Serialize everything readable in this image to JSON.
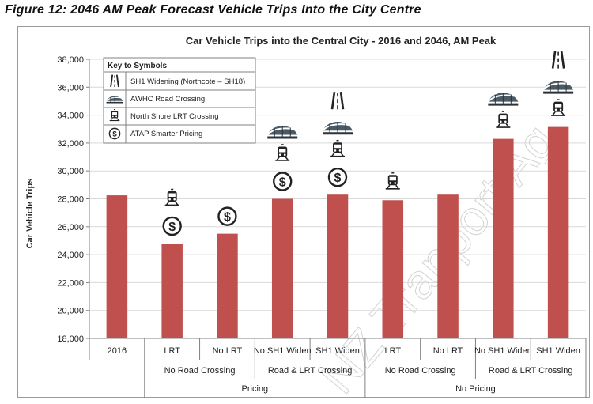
{
  "figure_caption": "Figure 12: 2046 AM Peak Forecast Vehicle Trips Into the City Centre",
  "watermark": "NZ Tranport Ag",
  "colors": {
    "bar": "#c0504d",
    "gridline": "#d9d9d9",
    "axis": "#808080",
    "icon": "#222222"
  },
  "key": {
    "title": "Key to Symbols",
    "items": [
      {
        "icon": "road-widening-icon",
        "label": "SH1 Widening (Northcote – SH18)"
      },
      {
        "icon": "harbour-crossing-icon",
        "label": "AWHC Road Crossing"
      },
      {
        "icon": "train-icon",
        "label": "North Shore LRT Crossing"
      },
      {
        "icon": "dollar-icon",
        "label": "ATAP Smarter Pricing"
      }
    ]
  },
  "chart_data": {
    "type": "bar",
    "title": "Car Vehicle Trips into the Central City - 2016 and 2046, AM Peak",
    "ylabel": "Car Vehicle Trips",
    "xlabel": "",
    "ylim": [
      18000,
      38000
    ],
    "yticks": [
      18000,
      20000,
      22000,
      24000,
      26000,
      28000,
      30000,
      32000,
      34000,
      36000,
      38000
    ],
    "ytick_labels": [
      "18,000",
      "20,000",
      "22,000",
      "24,000",
      "26,000",
      "28,000",
      "30,000",
      "32,000",
      "34,000",
      "36,000",
      "38,000"
    ],
    "grid": true,
    "legend": "top-left",
    "categories": [
      "2016",
      "LRT",
      "No LRT",
      "No SH1 Widen",
      "SH1 Widen",
      "LRT",
      "No LRT",
      "No SH1 Widen",
      "SH1 Widen"
    ],
    "values": [
      28250,
      24800,
      25500,
      28000,
      28300,
      27900,
      28300,
      32300,
      33150
    ],
    "symbols": [
      [],
      [
        "train-icon",
        "dollar-icon"
      ],
      [
        "dollar-icon"
      ],
      [
        "harbour-crossing-icon",
        "train-icon",
        "dollar-icon"
      ],
      [
        "road-widening-icon",
        "harbour-crossing-icon",
        "train-icon",
        "dollar-icon"
      ],
      [
        "train-icon"
      ],
      [],
      [
        "harbour-crossing-icon",
        "train-icon"
      ],
      [
        "road-widening-icon",
        "harbour-crossing-icon",
        "train-icon"
      ]
    ],
    "group_level1": [
      {
        "label": "No Road Crossing",
        "span": [
          1,
          2
        ]
      },
      {
        "label": "Road & LRT Crossing",
        "span": [
          3,
          4
        ]
      },
      {
        "label": "No Road Crossing",
        "span": [
          5,
          6
        ]
      },
      {
        "label": "Road & LRT Crossing",
        "span": [
          7,
          8
        ]
      }
    ],
    "group_level2": [
      {
        "label": "Pricing",
        "span": [
          1,
          4
        ]
      },
      {
        "label": "No Pricing",
        "span": [
          5,
          8
        ]
      }
    ]
  }
}
